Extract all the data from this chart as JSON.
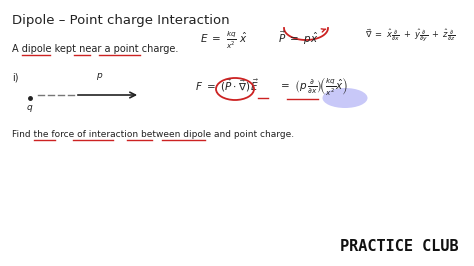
{
  "bg_color": "#ffffff",
  "title": "Dipole – Point charge Interaction",
  "title_fontsize": 9.5,
  "title_color": "#222222",
  "subtitle": "A dipole kept near a point charge.",
  "subtitle_fontsize": 7.0,
  "find_text": "Find the force of interaction between dipole and point charge.",
  "find_fontsize": 6.5,
  "practice_club_fontsize": 11,
  "practice_club_color": "#111111",
  "red_color": "#cc2222",
  "dark_color": "#222222",
  "blue_glow": "#7777ee"
}
